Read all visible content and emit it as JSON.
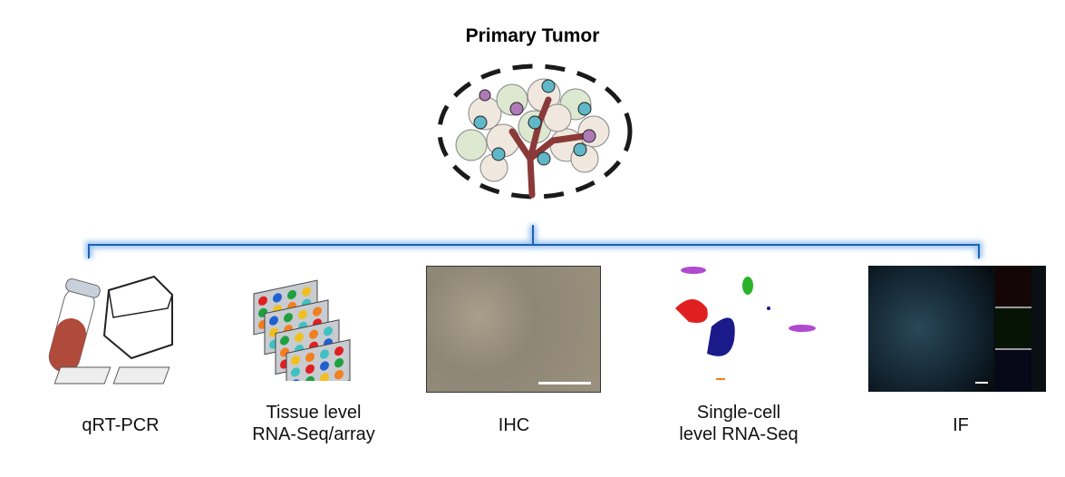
{
  "title": "Primary Tumor",
  "methods": [
    {
      "label": "qRT-PCR"
    },
    {
      "label": "Tissue level\nRNA-Seq/array"
    },
    {
      "label": "IHC"
    },
    {
      "label": "Single-cell\nlevel RNA-Seq"
    },
    {
      "label": "IF"
    }
  ],
  "colors": {
    "bracket": "#1f5fb8",
    "tumor_outline": "#1a1a1a",
    "vessel": "#8a3a38"
  }
}
